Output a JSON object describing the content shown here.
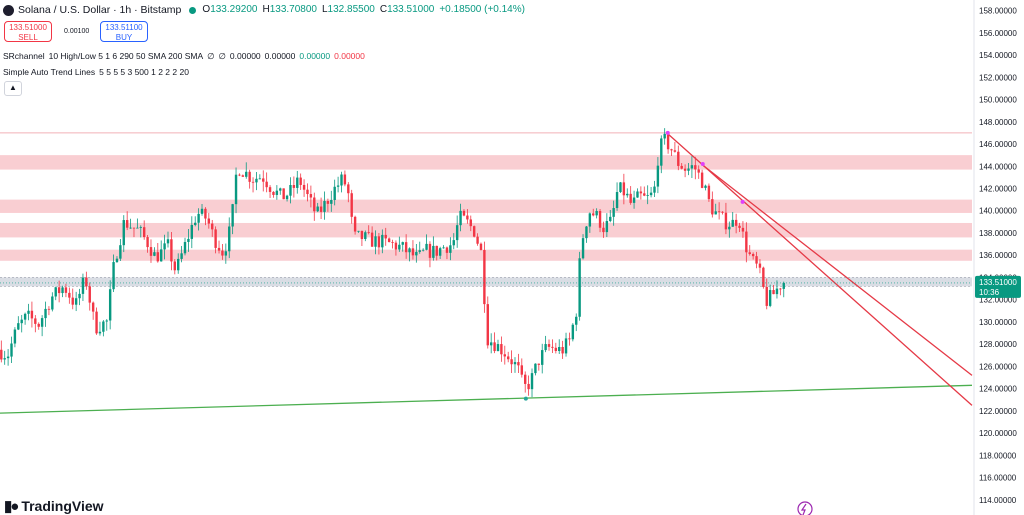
{
  "header": {
    "title": "Solana / U.S. Dollar · 1h · Bitstamp",
    "live_dot_color": "#089981",
    "ohlc": {
      "o_label": "O",
      "o_value": "133.29200",
      "h_label": "H",
      "h_value": "133.70800",
      "l_label": "L",
      "l_value": "132.85500",
      "c_label": "C",
      "c_value": "133.51000",
      "change": "+0.18500 (+0.14%)"
    }
  },
  "trade": {
    "sell_price": "133.51000",
    "sell_label": "SELL",
    "spread": "0.00100",
    "buy_price": "133.51100",
    "buy_label": "BUY"
  },
  "indicators": [
    {
      "name": "SRchannel",
      "params": "10 High/Low 5 1 6 290 50 SMA 200 SMA",
      "values": [
        {
          "text": "∅",
          "color": "#131722"
        },
        {
          "text": "∅",
          "color": "#131722"
        },
        {
          "text": "0.00000",
          "color": "#131722"
        },
        {
          "text": "0.00000",
          "color": "#131722"
        },
        {
          "text": "0.00000",
          "color": "#089981"
        },
        {
          "text": "0.00000",
          "color": "#f23645"
        }
      ]
    },
    {
      "name": "Simple Auto Trend Lines",
      "params": "5 5 5 5 3 500 1 2 2 2 20",
      "values": []
    }
  ],
  "collapse_icon": "chevron-up-icon",
  "branding": {
    "text": "TradingView",
    "icon": "tradingview-logo-icon"
  },
  "colors": {
    "up": "#089981",
    "down": "#f23645",
    "sr_zone": "#f8c6ca",
    "sr_zone_current": "#c9ced8",
    "support_line": "#4caf50",
    "resistance_line": "#e53946",
    "pivot_marker": "#e040fb",
    "top_line": "#f2b1b6"
  },
  "chart_data": {
    "type": "candlestick",
    "symbol": "SOLUSD",
    "interval": "1h",
    "ylim": [
      113,
      158.5
    ],
    "y_ticks": [
      "114.00000",
      "116.00000",
      "118.00000",
      "120.00000",
      "122.00000",
      "124.00000",
      "126.00000",
      "128.00000",
      "130.00000",
      "132.00000",
      "134.00000",
      "136.00000",
      "138.00000",
      "140.00000",
      "142.00000",
      "144.00000",
      "146.00000",
      "148.00000",
      "150.00000",
      "152.00000",
      "154.00000",
      "156.00000",
      "158.00000"
    ],
    "last_price_label": "133.51000",
    "countdown": "10:36",
    "sr_zones": [
      {
        "low": 143.7,
        "high": 145.0
      },
      {
        "low": 139.8,
        "high": 141.0
      },
      {
        "low": 137.6,
        "high": 138.9
      },
      {
        "low": 135.5,
        "high": 136.5
      },
      {
        "low": 133.2,
        "high": 134.0,
        "current": true
      }
    ],
    "top_level": 147.0,
    "trend_lines": [
      {
        "kind": "support",
        "from": {
          "bar": 0,
          "price": 121.8
        },
        "to": {
          "bar": 1000,
          "price": 124.3
        }
      },
      {
        "kind": "resistance",
        "from": {
          "bar": 686,
          "price": 147.0
        },
        "to": {
          "bar": 1000,
          "price": 122.5
        }
      },
      {
        "kind": "resistance",
        "from": {
          "bar": 723,
          "price": 144.1
        },
        "to": {
          "bar": 1000,
          "price": 125.2
        }
      }
    ],
    "pivots": [
      {
        "bar": 541,
        "price": 123.1
      },
      {
        "bar": 687,
        "price": 147.0
      },
      {
        "bar": 723,
        "price": 144.2
      },
      {
        "bar": 764,
        "price": 140.8
      }
    ],
    "path": [
      [
        0,
        127.5
      ],
      [
        10,
        127.0
      ],
      [
        20,
        129.5
      ],
      [
        30,
        130.5
      ],
      [
        42,
        129.8
      ],
      [
        55,
        132.2
      ],
      [
        68,
        133.2
      ],
      [
        80,
        131.5
      ],
      [
        90,
        134.0
      ],
      [
        100,
        129.5
      ],
      [
        112,
        130.0
      ],
      [
        120,
        135.5
      ],
      [
        130,
        139.0
      ],
      [
        145,
        138.2
      ],
      [
        155,
        137.0
      ],
      [
        162,
        135.8
      ],
      [
        175,
        136.8
      ],
      [
        183,
        134.5
      ],
      [
        195,
        137.5
      ],
      [
        205,
        139.8
      ],
      [
        215,
        139.3
      ],
      [
        222,
        137.6
      ],
      [
        232,
        136.2
      ],
      [
        240,
        138.6
      ],
      [
        246,
        144.0
      ],
      [
        252,
        143.6
      ],
      [
        262,
        142.9
      ],
      [
        272,
        143.1
      ],
      [
        282,
        142.0
      ],
      [
        292,
        141.2
      ],
      [
        300,
        141.6
      ],
      [
        310,
        142.8
      ],
      [
        320,
        141.0
      ],
      [
        328,
        139.6
      ],
      [
        335,
        140.4
      ],
      [
        345,
        141.8
      ],
      [
        355,
        142.9
      ],
      [
        360,
        141.8
      ],
      [
        366,
        137.6
      ],
      [
        375,
        137.6
      ],
      [
        385,
        137.3
      ],
      [
        395,
        137.2
      ],
      [
        405,
        137.0
      ],
      [
        415,
        136.7
      ],
      [
        425,
        136.1
      ],
      [
        432,
        135.7
      ],
      [
        440,
        136.4
      ],
      [
        450,
        136.3
      ],
      [
        460,
        136.8
      ],
      [
        468,
        137.0
      ],
      [
        475,
        139.4
      ],
      [
        482,
        139.0
      ],
      [
        490,
        138.2
      ],
      [
        498,
        136.0
      ],
      [
        503,
        128.6
      ],
      [
        512,
        128.0
      ],
      [
        520,
        127.4
      ],
      [
        528,
        126.6
      ],
      [
        535,
        125.8
      ],
      [
        541,
        124.0
      ],
      [
        548,
        124.6
      ],
      [
        556,
        126.5
      ],
      [
        565,
        127.7
      ],
      [
        572,
        127.6
      ],
      [
        580,
        127.4
      ],
      [
        588,
        128.3
      ],
      [
        595,
        131.0
      ],
      [
        600,
        137.0
      ],
      [
        608,
        140.0
      ],
      [
        616,
        139.5
      ],
      [
        623,
        138.5
      ],
      [
        631,
        139.0
      ],
      [
        638,
        142.0
      ],
      [
        645,
        141.6
      ],
      [
        652,
        140.5
      ],
      [
        660,
        141.3
      ],
      [
        667,
        141.0
      ],
      [
        675,
        141.6
      ],
      [
        680,
        145.5
      ],
      [
        686,
        146.3
      ],
      [
        692,
        145.7
      ],
      [
        700,
        144.3
      ],
      [
        708,
        143.7
      ],
      [
        716,
        144.0
      ],
      [
        725,
        142.6
      ],
      [
        733,
        140.4
      ],
      [
        740,
        139.6
      ],
      [
        748,
        139.0
      ],
      [
        755,
        138.8
      ],
      [
        762,
        139.4
      ],
      [
        768,
        137.2
      ],
      [
        775,
        135.6
      ],
      [
        782,
        134.8
      ],
      [
        786,
        133.6
      ],
      [
        790,
        131.8
      ],
      [
        796,
        132.3
      ],
      [
        802,
        133.0
      ],
      [
        806,
        133.5
      ]
    ]
  }
}
